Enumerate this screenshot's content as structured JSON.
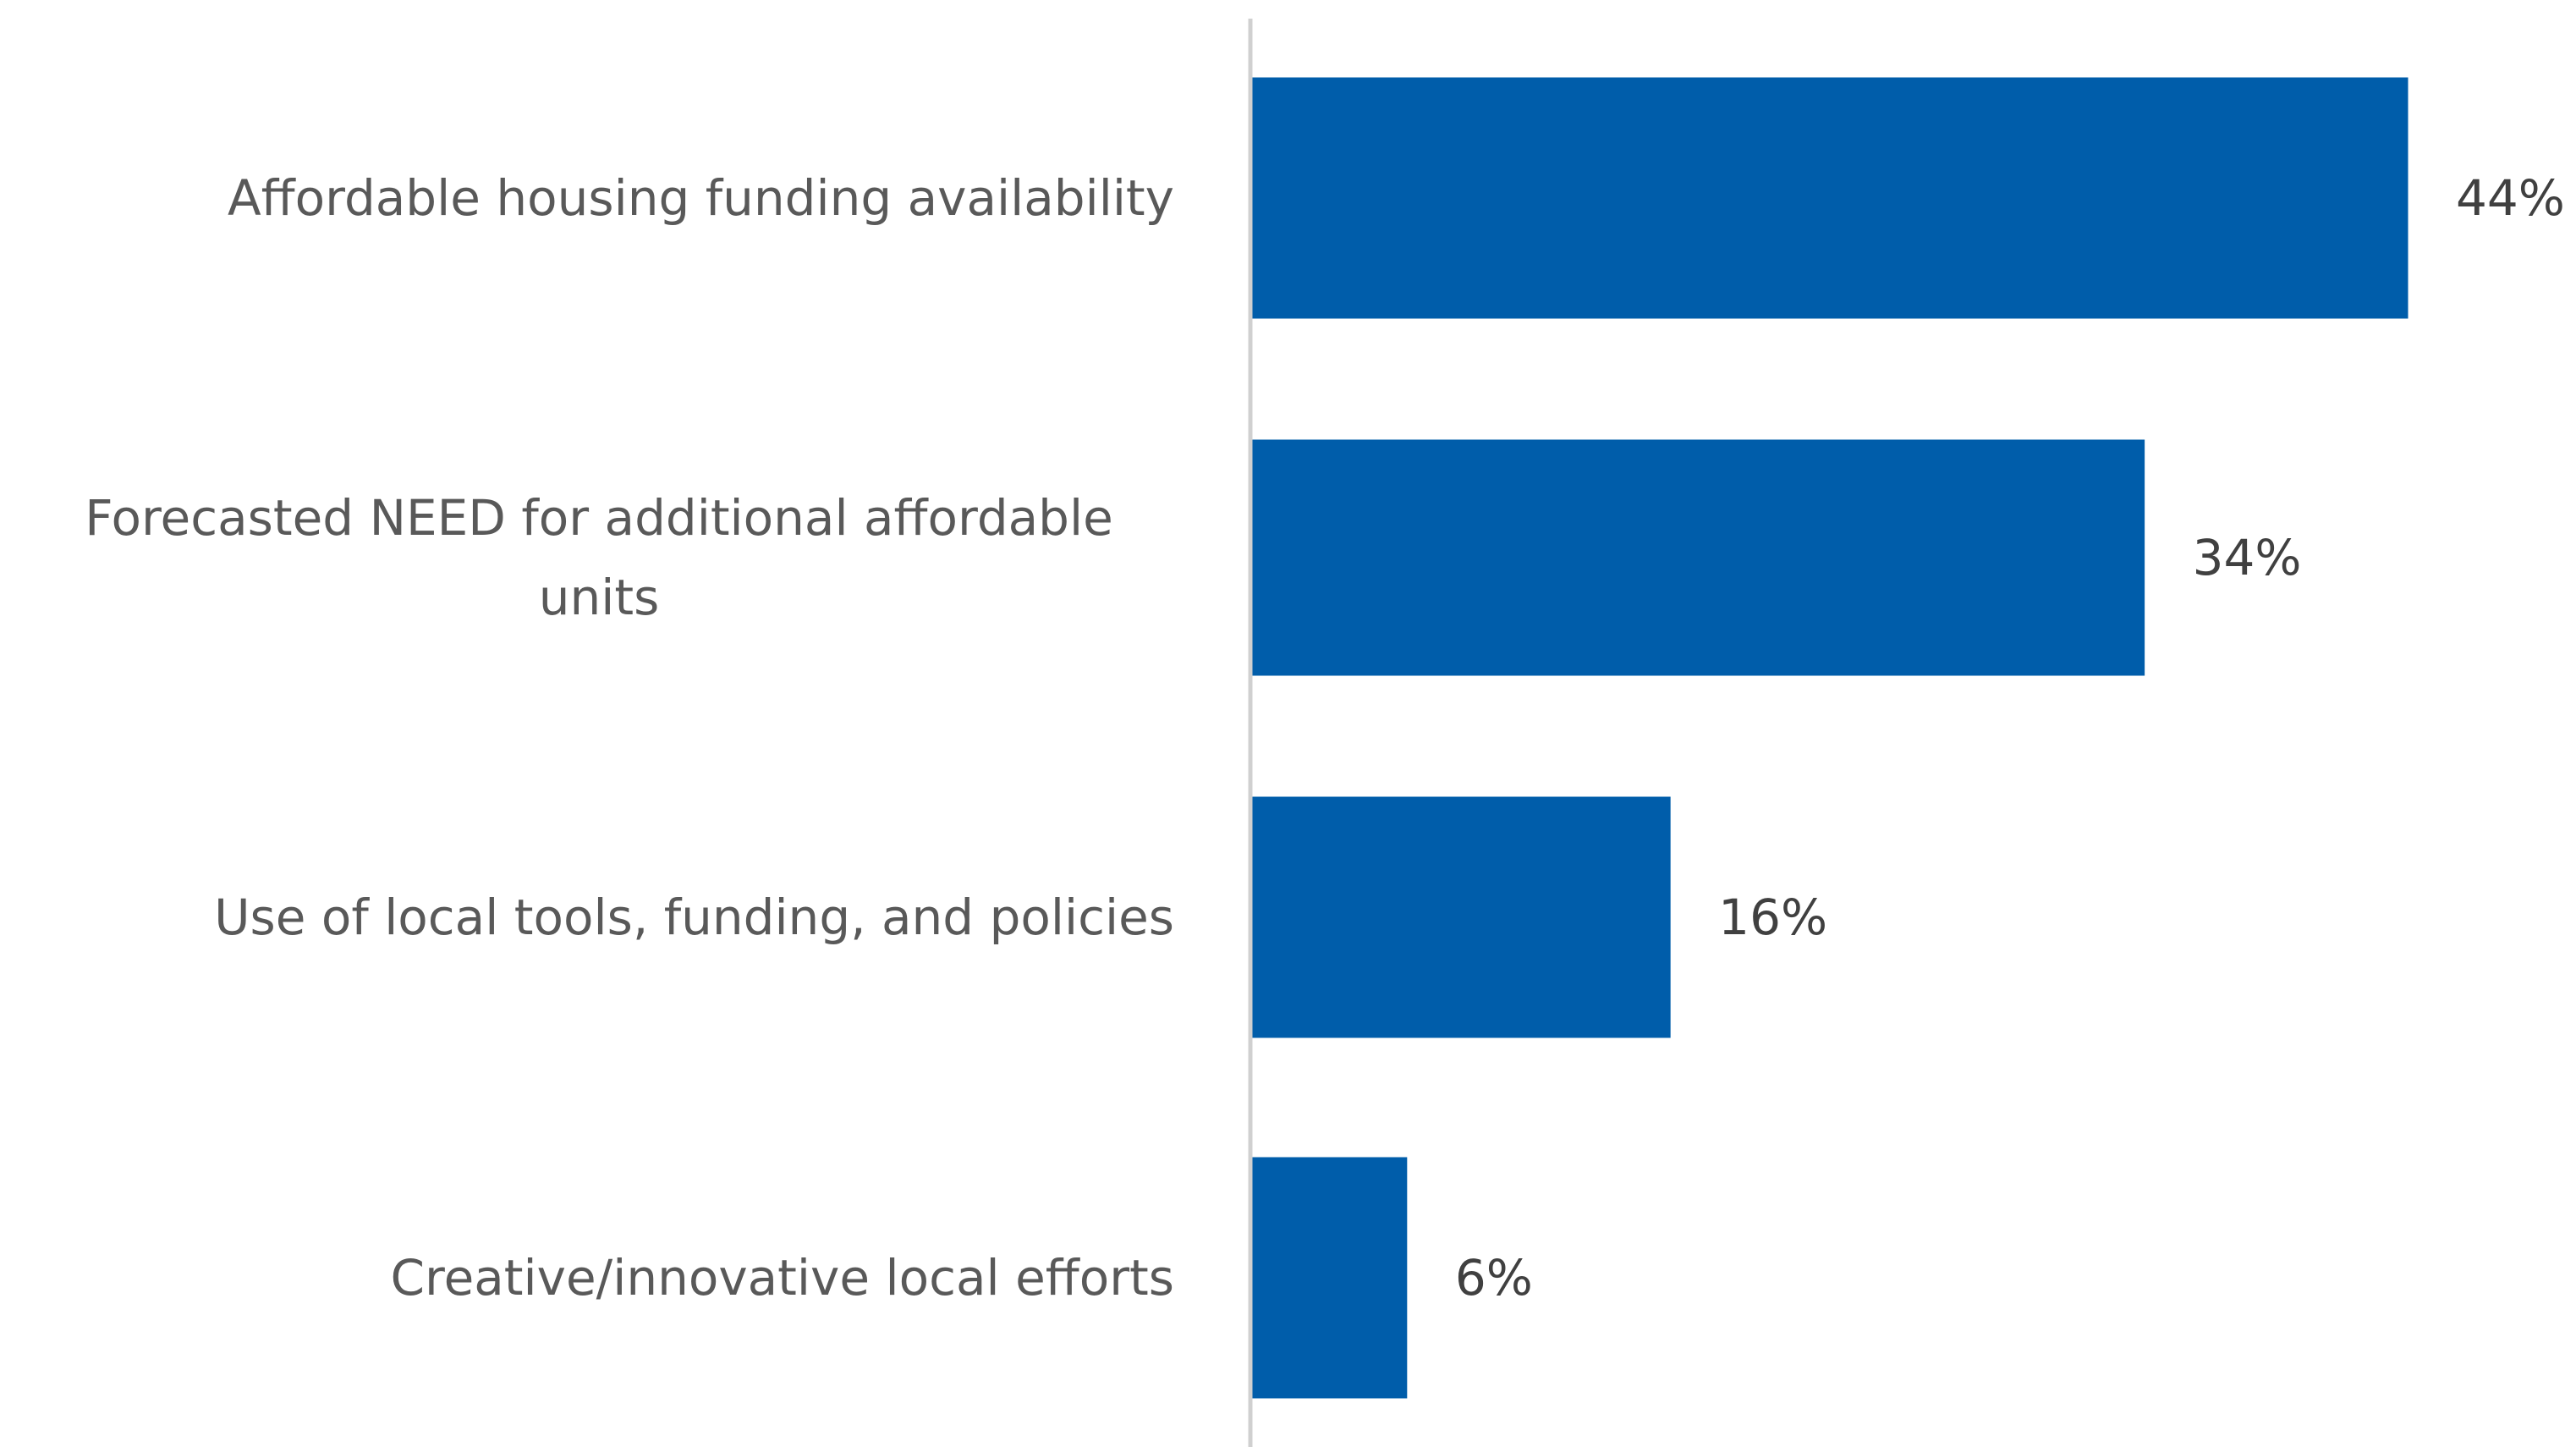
{
  "chart_data": {
    "type": "bar",
    "orientation": "horizontal",
    "categories": [
      "Affordable housing funding availability",
      "Forecasted NEED for additional affordable units",
      "Use of local tools, funding, and policies",
      "Creative/innovative local efforts"
    ],
    "category_lines": [
      [
        "Affordable housing funding availability"
      ],
      [
        "Forecasted NEED for additional affordable",
        "units"
      ],
      [
        "Use of local tools, funding, and policies"
      ],
      [
        "Creative/innovative local efforts"
      ]
    ],
    "values": [
      44,
      34,
      16,
      6
    ],
    "value_labels": [
      "44%",
      "34%",
      "16%",
      "6%"
    ],
    "title": "",
    "xlabel": "",
    "ylabel": "",
    "xlim": [
      0,
      44
    ],
    "grid": false,
    "legend": "none",
    "bar_color": "#005DAA"
  }
}
